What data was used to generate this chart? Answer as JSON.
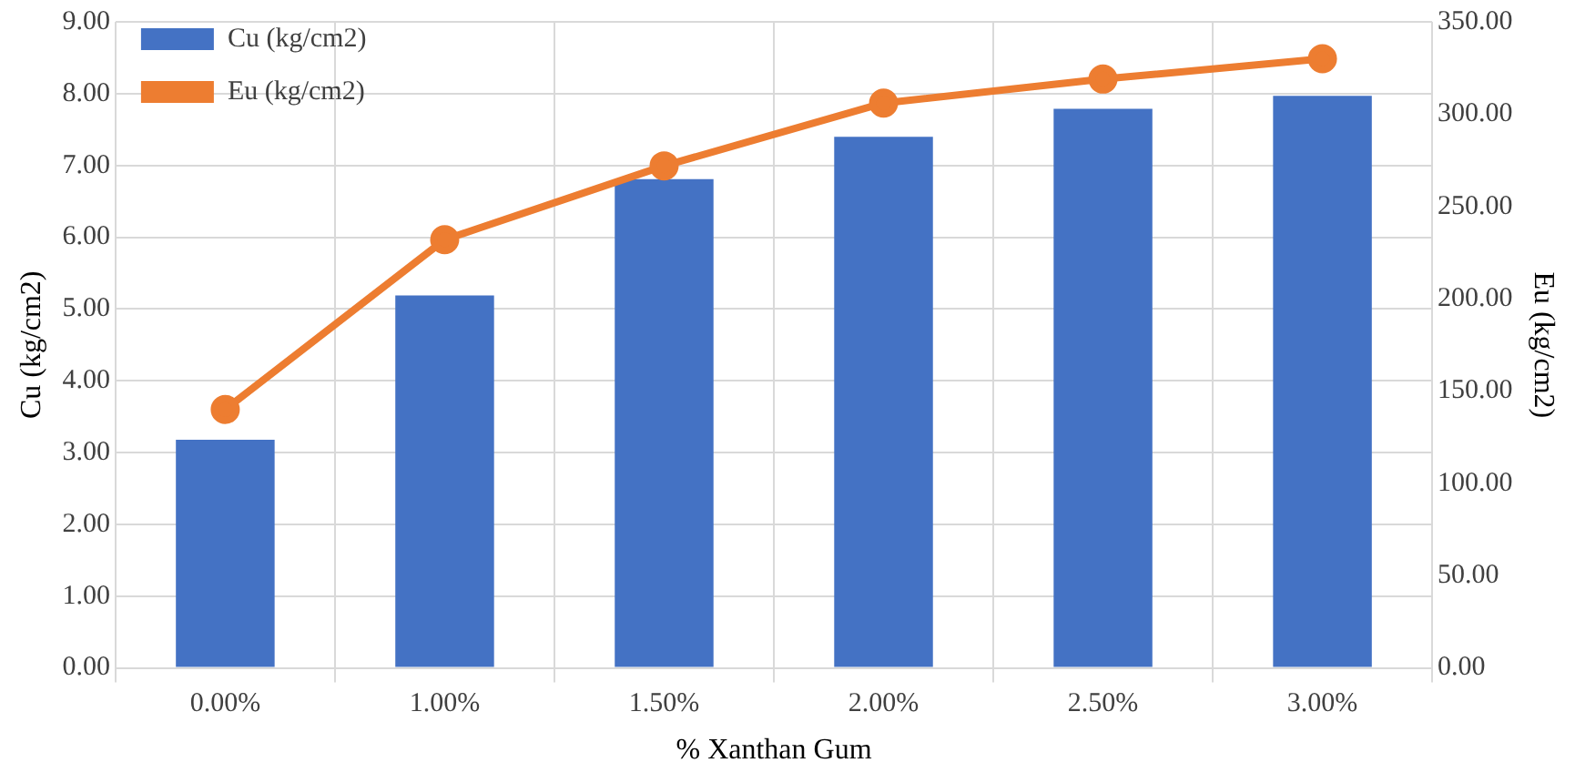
{
  "chart_data": {
    "type": "bar",
    "xlabel": "% Xanthan Gum",
    "ylabel": "Cu (kg/cm2)",
    "y2label": "Eu (kg/cm2)",
    "categories": [
      "0.00%",
      "1.00%",
      "1.50%",
      "2.00%",
      "2.50%",
      "3.00%"
    ],
    "series": [
      {
        "name": "Cu (kg/cm2)",
        "color": "#4472c4",
        "values": [
          3.18,
          5.19,
          6.81,
          7.4,
          7.79,
          7.97
        ]
      },
      {
        "name": "Eu (kg/cm2)",
        "type": "line",
        "axis": "y2",
        "color": "#ed7d31",
        "marker": "circle",
        "values": [
          140,
          232,
          272,
          306,
          319,
          330
        ]
      }
    ],
    "ylim": [
      0,
      9
    ],
    "yticks": [
      {
        "value": 0,
        "label": "0.00"
      },
      {
        "value": 1,
        "label": "1.00"
      },
      {
        "value": 2,
        "label": "2.00"
      },
      {
        "value": 3,
        "label": "3.00"
      },
      {
        "value": 4,
        "label": "4.00"
      },
      {
        "value": 5,
        "label": "5.00"
      },
      {
        "value": 6,
        "label": "6.00"
      },
      {
        "value": 7,
        "label": "7.00"
      },
      {
        "value": 8,
        "label": "8.00"
      },
      {
        "value": 9,
        "label": "9.00"
      }
    ],
    "y2lim": [
      0,
      350
    ],
    "y2ticks": [
      {
        "value": 0,
        "label": "0.00"
      },
      {
        "value": 50,
        "label": "50.00"
      },
      {
        "value": 100,
        "label": "100.00"
      },
      {
        "value": 150,
        "label": "150.00"
      },
      {
        "value": 200,
        "label": "200.00"
      },
      {
        "value": 250,
        "label": "250.00"
      },
      {
        "value": 300,
        "label": "300.00"
      },
      {
        "value": 350,
        "label": "350.00"
      }
    ],
    "grid": true,
    "legend": "top left"
  }
}
